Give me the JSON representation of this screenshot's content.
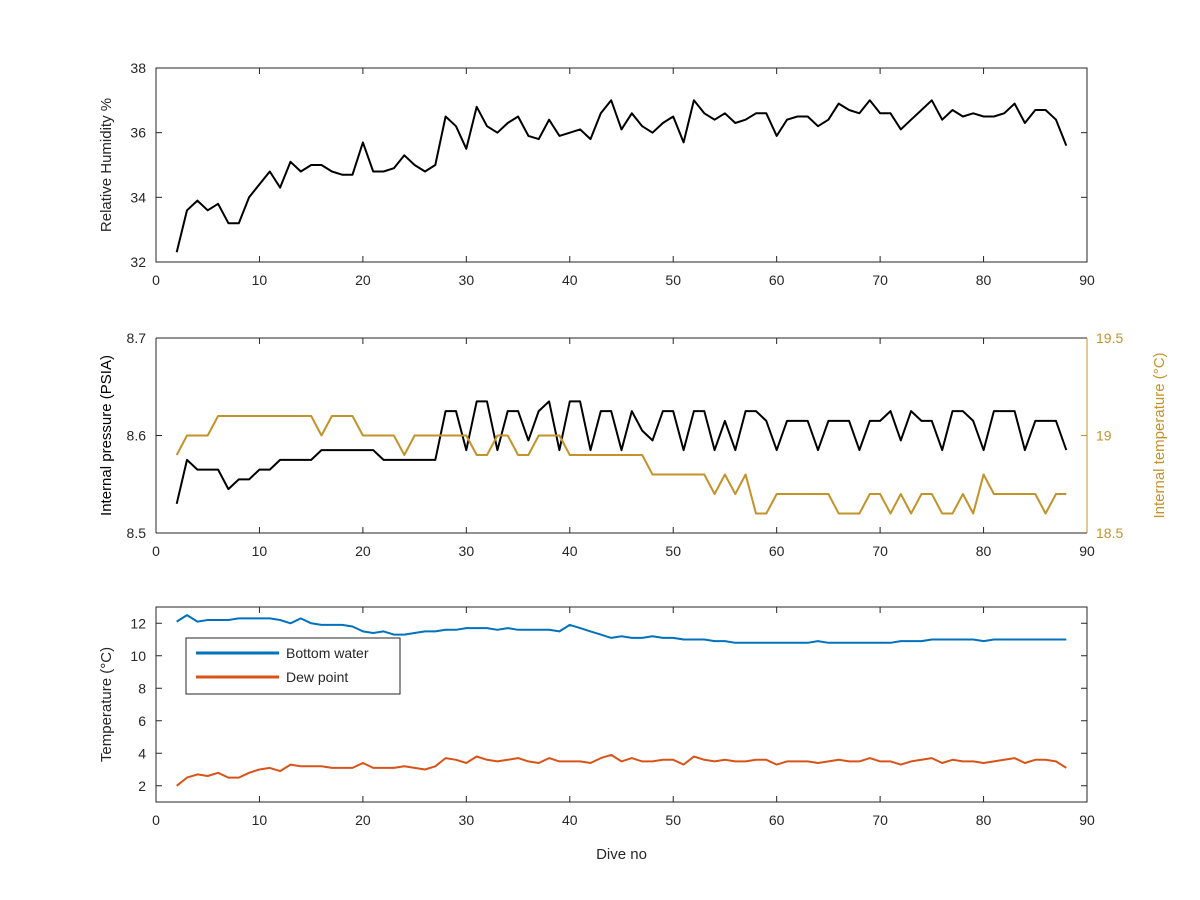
{
  "chart_data": [
    {
      "type": "line",
      "ylabel": "Relative Humidity %",
      "xlim": [
        0,
        90
      ],
      "ylim": [
        32,
        38
      ],
      "xticks": [
        0,
        10,
        20,
        30,
        40,
        50,
        60,
        70,
        80,
        90
      ],
      "yticks": [
        32,
        34,
        36,
        38
      ],
      "series": [
        {
          "color": "#000000",
          "x": [
            2,
            3,
            4,
            5,
            6,
            7,
            8,
            9,
            10,
            11,
            12,
            13,
            14,
            15,
            16,
            17,
            18,
            19,
            20,
            21,
            22,
            23,
            24,
            25,
            26,
            27,
            28,
            29,
            30,
            31,
            32,
            33,
            34,
            35,
            36,
            37,
            38,
            39,
            40,
            41,
            42,
            43,
            44,
            45,
            46,
            47,
            48,
            49,
            50,
            51,
            52,
            53,
            54,
            55,
            56,
            57,
            58,
            59,
            60,
            61,
            62,
            63,
            64,
            65,
            66,
            67,
            68,
            69,
            70,
            71,
            72,
            73,
            74,
            75,
            76,
            77,
            78,
            79,
            80,
            81,
            82,
            83,
            84,
            85,
            86,
            87,
            88
          ],
          "y": [
            32.3,
            33.6,
            33.9,
            33.6,
            33.8,
            33.2,
            33.2,
            34.0,
            34.4,
            34.8,
            34.3,
            35.1,
            34.8,
            35.0,
            35.0,
            34.8,
            34.7,
            34.7,
            35.7,
            34.8,
            34.8,
            34.9,
            35.3,
            35.0,
            34.8,
            35.0,
            36.5,
            36.2,
            35.5,
            36.8,
            36.2,
            36.0,
            36.3,
            36.5,
            35.9,
            35.8,
            36.4,
            35.9,
            36.0,
            36.1,
            35.8,
            36.6,
            37.0,
            36.1,
            36.6,
            36.2,
            36.0,
            36.3,
            36.5,
            35.7,
            37.0,
            36.6,
            36.4,
            36.6,
            36.3,
            36.4,
            36.6,
            36.6,
            35.9,
            36.4,
            36.5,
            36.5,
            36.2,
            36.4,
            36.9,
            36.7,
            36.6,
            37.0,
            36.6,
            36.6,
            36.1,
            36.4,
            36.7,
            37.0,
            36.4,
            36.7,
            36.5,
            36.6,
            36.5,
            36.5,
            36.6,
            36.9,
            36.3,
            36.7,
            36.7,
            36.4,
            35.6
          ]
        }
      ]
    },
    {
      "type": "line",
      "ylabel": "Internal pressure (PSIA)",
      "ylabel_right": "Internal temperature (°C)",
      "xlim": [
        0,
        90
      ],
      "ylim": [
        8.5,
        8.7
      ],
      "ylim_right": [
        18.5,
        19.5
      ],
      "xticks": [
        0,
        10,
        20,
        30,
        40,
        50,
        60,
        70,
        80,
        90
      ],
      "yticks": [
        "8.5",
        "8.6",
        "8.7"
      ],
      "yticks_right": [
        "18.5",
        "19",
        "19.5"
      ],
      "right_axis_color": "#c3932b",
      "series": [
        {
          "axis": "left",
          "color": "#000000",
          "x": [
            2,
            3,
            4,
            5,
            6,
            7,
            8,
            9,
            10,
            11,
            12,
            13,
            14,
            15,
            16,
            17,
            18,
            19,
            20,
            21,
            22,
            23,
            24,
            25,
            26,
            27,
            28,
            29,
            30,
            31,
            32,
            33,
            34,
            35,
            36,
            37,
            38,
            39,
            40,
            41,
            42,
            43,
            44,
            45,
            46,
            47,
            48,
            49,
            50,
            51,
            52,
            53,
            54,
            55,
            56,
            57,
            58,
            59,
            60,
            61,
            62,
            63,
            64,
            65,
            66,
            67,
            68,
            69,
            70,
            71,
            72,
            73,
            74,
            75,
            76,
            77,
            78,
            79,
            80,
            81,
            82,
            83,
            84,
            85,
            86,
            87,
            88
          ],
          "y": [
            8.53,
            8.575,
            8.565,
            8.565,
            8.565,
            8.545,
            8.555,
            8.555,
            8.565,
            8.565,
            8.575,
            8.575,
            8.575,
            8.575,
            8.585,
            8.585,
            8.585,
            8.585,
            8.585,
            8.585,
            8.575,
            8.575,
            8.575,
            8.575,
            8.575,
            8.575,
            8.625,
            8.625,
            8.585,
            8.635,
            8.635,
            8.585,
            8.625,
            8.625,
            8.595,
            8.625,
            8.635,
            8.585,
            8.635,
            8.635,
            8.585,
            8.625,
            8.625,
            8.585,
            8.625,
            8.605,
            8.595,
            8.625,
            8.625,
            8.585,
            8.625,
            8.625,
            8.585,
            8.615,
            8.585,
            8.625,
            8.625,
            8.615,
            8.585,
            8.615,
            8.615,
            8.615,
            8.585,
            8.615,
            8.615,
            8.615,
            8.585,
            8.615,
            8.615,
            8.625,
            8.595,
            8.625,
            8.615,
            8.615,
            8.585,
            8.625,
            8.625,
            8.615,
            8.585,
            8.625,
            8.625,
            8.625,
            8.585,
            8.615,
            8.615,
            8.615,
            8.585
          ]
        },
        {
          "axis": "right",
          "color": "#c3932b",
          "x": [
            2,
            3,
            4,
            5,
            6,
            7,
            8,
            9,
            10,
            11,
            12,
            13,
            14,
            15,
            16,
            17,
            18,
            19,
            20,
            21,
            22,
            23,
            24,
            25,
            26,
            27,
            28,
            29,
            30,
            31,
            32,
            33,
            34,
            35,
            36,
            37,
            38,
            39,
            40,
            41,
            42,
            43,
            44,
            45,
            46,
            47,
            48,
            49,
            50,
            51,
            52,
            53,
            54,
            55,
            56,
            57,
            58,
            59,
            60,
            61,
            62,
            63,
            64,
            65,
            66,
            67,
            68,
            69,
            70,
            71,
            72,
            73,
            74,
            75,
            76,
            77,
            78,
            79,
            80,
            81,
            82,
            83,
            84,
            85,
            86,
            87,
            88
          ],
          "y": [
            18.9,
            19.0,
            19.0,
            19.0,
            19.1,
            19.1,
            19.1,
            19.1,
            19.1,
            19.1,
            19.1,
            19.1,
            19.1,
            19.1,
            19.0,
            19.1,
            19.1,
            19.1,
            19.0,
            19.0,
            19.0,
            19.0,
            18.9,
            19.0,
            19.0,
            19.0,
            19.0,
            19.0,
            19.0,
            18.9,
            18.9,
            19.0,
            19.0,
            18.9,
            18.9,
            19.0,
            19.0,
            19.0,
            18.9,
            18.9,
            18.9,
            18.9,
            18.9,
            18.9,
            18.9,
            18.9,
            18.8,
            18.8,
            18.8,
            18.8,
            18.8,
            18.8,
            18.7,
            18.8,
            18.7,
            18.8,
            18.6,
            18.6,
            18.7,
            18.7,
            18.7,
            18.7,
            18.7,
            18.7,
            18.6,
            18.6,
            18.6,
            18.7,
            18.7,
            18.6,
            18.7,
            18.6,
            18.7,
            18.7,
            18.6,
            18.6,
            18.7,
            18.6,
            18.8,
            18.7,
            18.7,
            18.7,
            18.7,
            18.7,
            18.6,
            18.7,
            18.7
          ]
        }
      ]
    },
    {
      "type": "line",
      "xlabel": "Dive no",
      "ylabel": "Temperature (°C)",
      "xlim": [
        0,
        90
      ],
      "ylim": [
        1,
        13
      ],
      "xticks": [
        0,
        10,
        20,
        30,
        40,
        50,
        60,
        70,
        80,
        90
      ],
      "yticks": [
        2,
        4,
        6,
        8,
        10,
        12
      ],
      "legend_position": "top-left",
      "series": [
        {
          "name": "Bottom water",
          "color": "#0072bd",
          "x": [
            2,
            3,
            4,
            5,
            6,
            7,
            8,
            9,
            10,
            11,
            12,
            13,
            14,
            15,
            16,
            17,
            18,
            19,
            20,
            21,
            22,
            23,
            24,
            25,
            26,
            27,
            28,
            29,
            30,
            31,
            32,
            33,
            34,
            35,
            36,
            37,
            38,
            39,
            40,
            41,
            42,
            43,
            44,
            45,
            46,
            47,
            48,
            49,
            50,
            51,
            52,
            53,
            54,
            55,
            56,
            57,
            58,
            59,
            60,
            61,
            62,
            63,
            64,
            65,
            66,
            67,
            68,
            69,
            70,
            71,
            72,
            73,
            74,
            75,
            76,
            77,
            78,
            79,
            80,
            81,
            82,
            83,
            84,
            85,
            86,
            87,
            88
          ],
          "y": [
            12.1,
            12.5,
            12.1,
            12.2,
            12.2,
            12.2,
            12.3,
            12.3,
            12.3,
            12.3,
            12.2,
            12.0,
            12.3,
            12.0,
            11.9,
            11.9,
            11.9,
            11.8,
            11.5,
            11.4,
            11.5,
            11.3,
            11.3,
            11.4,
            11.5,
            11.5,
            11.6,
            11.6,
            11.7,
            11.7,
            11.7,
            11.6,
            11.7,
            11.6,
            11.6,
            11.6,
            11.6,
            11.5,
            11.9,
            11.7,
            11.5,
            11.3,
            11.1,
            11.2,
            11.1,
            11.1,
            11.2,
            11.1,
            11.1,
            11.0,
            11.0,
            11.0,
            10.9,
            10.9,
            10.8,
            10.8,
            10.8,
            10.8,
            10.8,
            10.8,
            10.8,
            10.8,
            10.9,
            10.8,
            10.8,
            10.8,
            10.8,
            10.8,
            10.8,
            10.8,
            10.9,
            10.9,
            10.9,
            11.0,
            11.0,
            11.0,
            11.0,
            11.0,
            10.9,
            11.0,
            11.0,
            11.0,
            11.0,
            11.0,
            11.0,
            11.0,
            11.0
          ]
        },
        {
          "name": "Dew point",
          "color": "#d95319",
          "x": [
            2,
            3,
            4,
            5,
            6,
            7,
            8,
            9,
            10,
            11,
            12,
            13,
            14,
            15,
            16,
            17,
            18,
            19,
            20,
            21,
            22,
            23,
            24,
            25,
            26,
            27,
            28,
            29,
            30,
            31,
            32,
            33,
            34,
            35,
            36,
            37,
            38,
            39,
            40,
            41,
            42,
            43,
            44,
            45,
            46,
            47,
            48,
            49,
            50,
            51,
            52,
            53,
            54,
            55,
            56,
            57,
            58,
            59,
            60,
            61,
            62,
            63,
            64,
            65,
            66,
            67,
            68,
            69,
            70,
            71,
            72,
            73,
            74,
            75,
            76,
            77,
            78,
            79,
            80,
            81,
            82,
            83,
            84,
            85,
            86,
            87,
            88
          ],
          "y": [
            2.0,
            2.5,
            2.7,
            2.6,
            2.8,
            2.5,
            2.5,
            2.8,
            3.0,
            3.1,
            2.9,
            3.3,
            3.2,
            3.2,
            3.2,
            3.1,
            3.1,
            3.1,
            3.4,
            3.1,
            3.1,
            3.1,
            3.2,
            3.1,
            3.0,
            3.2,
            3.7,
            3.6,
            3.4,
            3.8,
            3.6,
            3.5,
            3.6,
            3.7,
            3.5,
            3.4,
            3.7,
            3.5,
            3.5,
            3.5,
            3.4,
            3.7,
            3.9,
            3.5,
            3.7,
            3.5,
            3.5,
            3.6,
            3.6,
            3.3,
            3.8,
            3.6,
            3.5,
            3.6,
            3.5,
            3.5,
            3.6,
            3.6,
            3.3,
            3.5,
            3.5,
            3.5,
            3.4,
            3.5,
            3.6,
            3.5,
            3.5,
            3.7,
            3.5,
            3.5,
            3.3,
            3.5,
            3.6,
            3.7,
            3.4,
            3.6,
            3.5,
            3.5,
            3.4,
            3.5,
            3.6,
            3.7,
            3.4,
            3.6,
            3.6,
            3.5,
            3.1
          ]
        }
      ]
    }
  ]
}
